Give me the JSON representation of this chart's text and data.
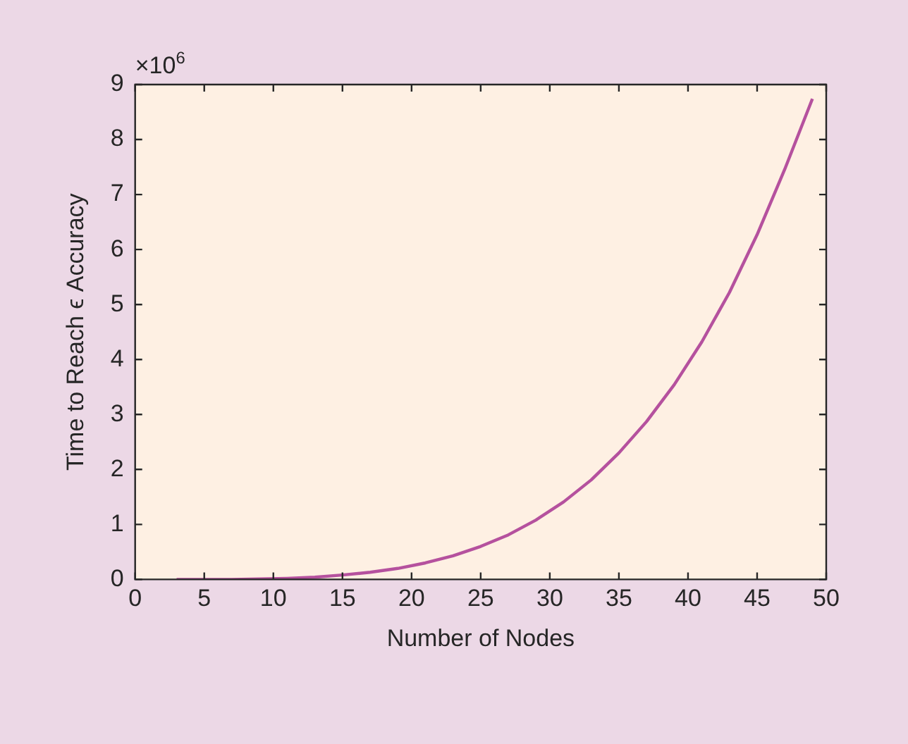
{
  "chart_data": {
    "type": "line",
    "xlabel": "Number of Nodes",
    "ylabel": "Time to Reach ϵ Accuracy",
    "annotations": [
      "×10$^{6}$"
    ],
    "x": [
      3,
      5,
      7,
      9,
      11,
      13,
      15,
      17,
      19,
      21,
      23,
      25,
      27,
      29,
      31,
      33,
      35,
      37,
      39,
      41,
      43,
      45,
      47,
      49
    ],
    "series": [
      {
        "color": "#b5519e",
        "values": [
          0,
          0,
          0,
          0.01,
          0.02,
          0.04,
          0.08,
          0.13,
          0.2,
          0.3,
          0.43,
          0.6,
          0.81,
          1.08,
          1.41,
          1.81,
          2.3,
          2.87,
          3.54,
          4.32,
          5.22,
          6.27,
          7.46,
          8.74
        ]
      }
    ],
    "xlim": [
      0,
      50
    ],
    "xticks": [
      0,
      5,
      10,
      15,
      20,
      25,
      30,
      35,
      40,
      45,
      50
    ],
    "ylim": [
      0,
      9
    ],
    "yticks": [
      0,
      1,
      2,
      3,
      4,
      5,
      6,
      7,
      8,
      9
    ],
    "grid": false,
    "legend": false,
    "marker": "none",
    "line_style": "solid"
  }
}
